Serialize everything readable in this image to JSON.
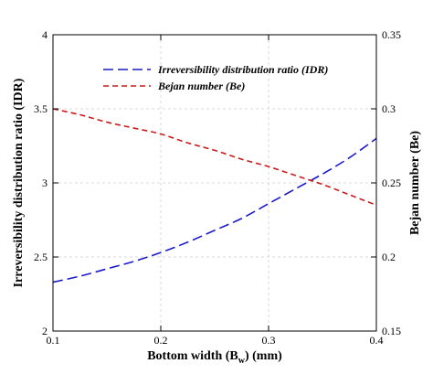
{
  "chart_data": {
    "type": "line",
    "title": "",
    "xlabel": "Bottom width (B",
    "xlabel_sub": "w",
    "xlabel_suffix": ") (mm)",
    "ylabel_left": "Irreversibility distribution ratio (IDR)",
    "ylabel_right": "Bejan number (Be)",
    "xlim": [
      0.1,
      0.4
    ],
    "ylim_left": [
      2,
      4
    ],
    "ylim_right": [
      0.15,
      0.35
    ],
    "x_ticks": [
      "0.1",
      "0.2",
      "0.3",
      "0.4"
    ],
    "y_left_ticks": [
      "2",
      "2.5",
      "3",
      "3.5",
      "4"
    ],
    "y_right_ticks": [
      "0.15",
      "0.2",
      "0.25",
      "0.3",
      "0.35"
    ],
    "grid": true,
    "legend_position": "top-center",
    "x": [
      0.1,
      0.125,
      0.15,
      0.175,
      0.2,
      0.225,
      0.25,
      0.275,
      0.3,
      0.325,
      0.35,
      0.375,
      0.4
    ],
    "series": [
      {
        "name": "Irreversibility distribution ratio (IDR)",
        "axis": "left",
        "color": "#1a1acc",
        "dash": "long",
        "values": [
          2.33,
          2.37,
          2.42,
          2.47,
          2.53,
          2.6,
          2.68,
          2.76,
          2.86,
          2.96,
          3.06,
          3.17,
          3.3
        ]
      },
      {
        "name": "Bejan number (Be)",
        "axis": "right",
        "color": "#cc1a1a",
        "dash": "short",
        "values": [
          0.3,
          0.296,
          0.291,
          0.287,
          0.283,
          0.277,
          0.272,
          0.266,
          0.261,
          0.255,
          0.249,
          0.242,
          0.235
        ]
      }
    ]
  }
}
